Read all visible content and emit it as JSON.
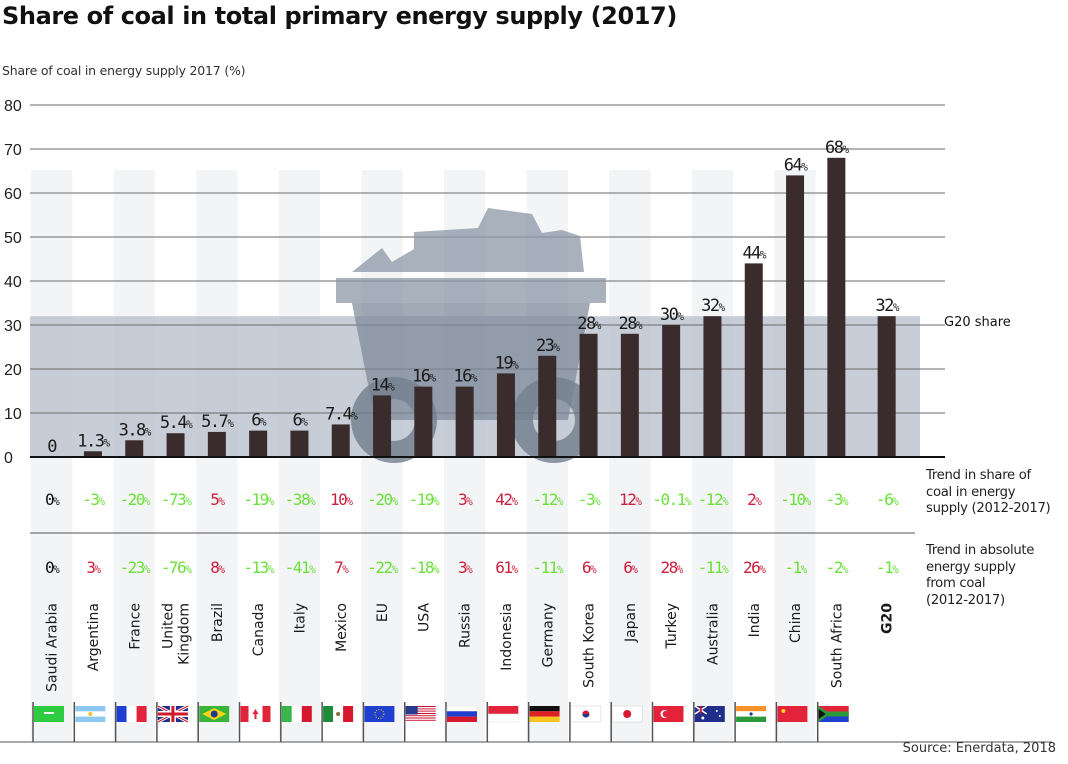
{
  "title": "Share of coal in total primary energy supply (2017)",
  "y_axis_label": "Share of coal in energy supply 2017 (%)",
  "g20_band_label": "G20 share",
  "trend_share_label": [
    "Trend in share of",
    "coal in energy",
    "supply (2012-2017)"
  ],
  "trend_absolute_label": [
    "Trend in absolute",
    "energy supply",
    "from coal",
    "(2012-2017)"
  ],
  "source": "Source: Enerdata, 2018",
  "colors": {
    "bar": "#3a2b2c",
    "band": "#b9c2cd",
    "cart": "#8e99a8",
    "increase": "#cc1f3b",
    "decrease": "#6be13a",
    "neutral": "#111111",
    "stripe": "#eef0f3"
  },
  "chart_data": {
    "type": "bar",
    "title": "Share of coal in total primary energy supply (2017)",
    "ylabel": "Share of coal in energy supply 2017 (%)",
    "xlabel": "",
    "ylim": [
      0,
      80
    ],
    "yticks": [
      0,
      10,
      20,
      30,
      40,
      50,
      60,
      70,
      80
    ],
    "grid": true,
    "reference_band": {
      "label": "G20 share",
      "value": 32
    },
    "categories": [
      "Saudi Arabia",
      "Argentina",
      "France",
      "United Kingdom",
      "Brazil",
      "Canada",
      "Italy",
      "Mexico",
      "EU",
      "USA",
      "Russia",
      "Indonesia",
      "Germany",
      "South Korea",
      "Japan",
      "Turkey",
      "Australia",
      "India",
      "China",
      "South Africa",
      "G20"
    ],
    "category_lines": [
      [
        "Saudi Arabia"
      ],
      [
        "Argentina"
      ],
      [
        "France"
      ],
      [
        "United",
        "Kingdom"
      ],
      [
        "Brazil"
      ],
      [
        "Canada"
      ],
      [
        "Italy"
      ],
      [
        "Mexico"
      ],
      [
        "EU"
      ],
      [
        "USA"
      ],
      [
        "Russia"
      ],
      [
        "Indonesia"
      ],
      [
        "Germany"
      ],
      [
        "South Korea"
      ],
      [
        "Japan"
      ],
      [
        "Turkey"
      ],
      [
        "Australia"
      ],
      [
        "India"
      ],
      [
        "China"
      ],
      [
        "South Africa"
      ],
      [
        "G20"
      ]
    ],
    "flags": [
      "saudi-arabia",
      "argentina",
      "france",
      "united-kingdom",
      "brazil",
      "canada",
      "italy",
      "mexico",
      "eu",
      "usa",
      "russia",
      "indonesia",
      "germany",
      "south-korea",
      "japan",
      "turkey",
      "australia",
      "india",
      "china",
      "south-africa",
      null
    ],
    "values": [
      0,
      1.3,
      3.8,
      5.4,
      5.7,
      6,
      6,
      7.4,
      14,
      16,
      16,
      19,
      23,
      28,
      28,
      30,
      32,
      44,
      64,
      68,
      32
    ],
    "value_labels": [
      "0",
      "1.3",
      "3.8",
      "5.4",
      "5.7",
      "6",
      "6",
      "7.4",
      "14",
      "16",
      "16",
      "19",
      "23",
      "28",
      "28",
      "30",
      "32",
      "44",
      "64",
      "68",
      "32"
    ],
    "series": [
      {
        "name": "Share of coal in energy supply 2017 (%)",
        "values": [
          0,
          1.3,
          3.8,
          5.4,
          5.7,
          6,
          6,
          7.4,
          14,
          16,
          16,
          19,
          23,
          28,
          28,
          30,
          32,
          44,
          64,
          68,
          32
        ]
      },
      {
        "name": "Trend in share of coal in energy supply (2012-2017) (%)",
        "values": [
          0,
          -3,
          -20,
          -73,
          5,
          -19,
          -38,
          10,
          -20,
          -19,
          3,
          42,
          -12,
          -3,
          12,
          -0.1,
          -12,
          2,
          -10,
          -3,
          -6
        ]
      },
      {
        "name": "Trend in absolute energy supply from coal (2012-2017) (%)",
        "values": [
          0,
          3,
          -23,
          -76,
          8,
          -13,
          -41,
          7,
          -22,
          -18,
          3,
          61,
          -11,
          6,
          6,
          28,
          -11,
          26,
          -1,
          -2,
          -1
        ]
      }
    ],
    "trend_share_labels": [
      "0",
      "-3",
      "-20",
      "-73",
      "5",
      "-19",
      "-38",
      "10",
      "-20",
      "-19",
      "3",
      "42",
      "-12",
      "-3",
      "12",
      "-0.1",
      "-12",
      "2",
      "-10",
      "-3",
      "-6"
    ],
    "trend_absolute_labels": [
      "0",
      "3",
      "-23",
      "-76",
      "8",
      "-13",
      "-41",
      "7",
      "-22",
      "-18",
      "3",
      "61",
      "-11",
      "6",
      "6",
      "28",
      "-11",
      "26",
      "-1",
      "-2",
      "-1"
    ]
  }
}
